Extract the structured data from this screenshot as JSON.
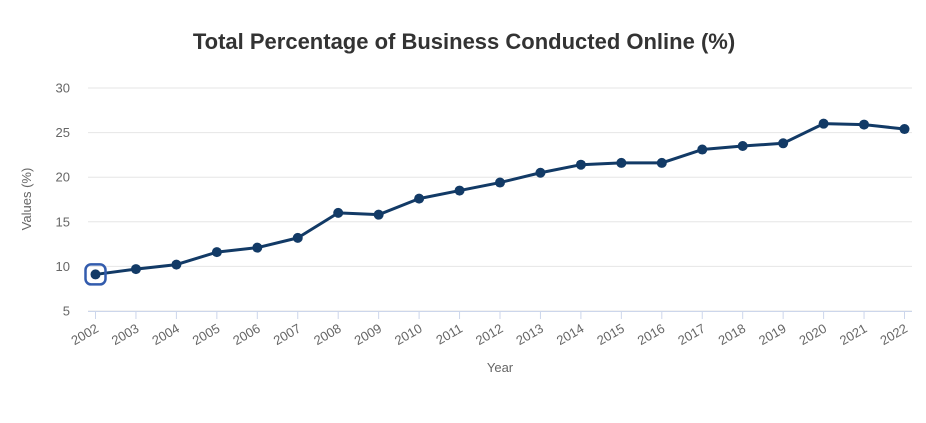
{
  "chart_data": {
    "type": "line",
    "title": "Total Percentage of Business Conducted Online (%)",
    "xlabel": "Year",
    "ylabel": "Values (%)",
    "categories": [
      "2002",
      "2003",
      "2004",
      "2005",
      "2006",
      "2007",
      "2008",
      "2009",
      "2010",
      "2011",
      "2012",
      "2013",
      "2014",
      "2015",
      "2016",
      "2017",
      "2018",
      "2019",
      "2020",
      "2021",
      "2022"
    ],
    "values": [
      9.1,
      9.7,
      10.2,
      11.6,
      12.1,
      13.2,
      16.0,
      15.8,
      17.6,
      18.5,
      19.4,
      20.5,
      21.4,
      21.6,
      21.6,
      23.1,
      23.5,
      23.8,
      26.0,
      25.9,
      25.4
    ],
    "ylim": [
      5,
      30
    ],
    "yticks": [
      5,
      10,
      15,
      20,
      25,
      30
    ],
    "grid": "horizontal",
    "legend": "none",
    "x_label_rotation_deg": -30,
    "selected_point_index": 0,
    "colors": {
      "series": "#123a66",
      "grid_line": "#e6e6e6",
      "axis_line": "#ccd6eb",
      "tick_label": "#666666",
      "axis_title": "#666666",
      "title": "#333333",
      "focus_ring": "#335cad",
      "background": "#ffffff"
    }
  }
}
